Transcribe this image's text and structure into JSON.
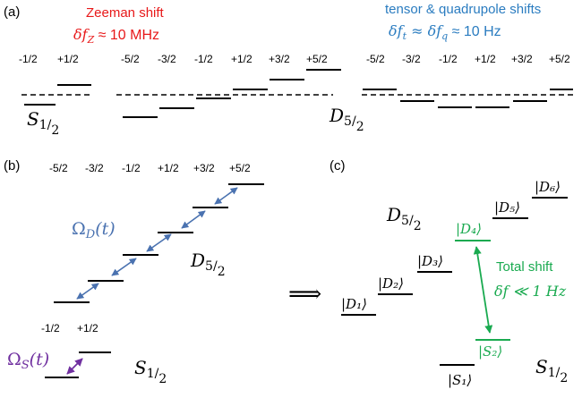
{
  "colors": {
    "black": "#000000",
    "red": "#e8191a",
    "blue": "#2a7cc0",
    "steel": "#4a72b0",
    "purple": "#7030a0",
    "green": "#1aaa50"
  },
  "panel_a": {
    "label": "(a)",
    "zeeman_title": "Zeeman shift",
    "zeeman_formula": "δf",
    "zeeman_sub": "Z",
    "zeeman_value": " ≈ 10 MHz",
    "tensor_title": "tensor & quadrupole shifts",
    "tensor_f1": "δf",
    "tensor_s1": "t",
    "tensor_mid": " ≈ δf",
    "tensor_s2": "q",
    "tensor_value": " ≈ 10 Hz",
    "s_levels": [
      "-1/2",
      "+1/2"
    ],
    "d_levels": [
      "-5/2",
      "-3/2",
      "-1/2",
      "+1/2",
      "+3/2",
      "+5/2"
    ],
    "state_s": "S",
    "state_d": "D",
    "s_sub": "1",
    "s_frac": "/",
    "s_den": "2",
    "d_sub": "5",
    "d_frac": "/",
    "d_den": "2"
  },
  "panel_b": {
    "label": "(b)",
    "d_levels": [
      "-5/2",
      "-3/2",
      "-1/2",
      "+1/2",
      "+3/2",
      "+5/2"
    ],
    "s_levels": [
      "-1/2",
      "+1/2"
    ],
    "omega_d": "Ω",
    "omega_d_sub": "D",
    "omega_d_arg": "(t)",
    "omega_s": "Ω",
    "omega_s_sub": "S",
    "omega_s_arg": "(t)",
    "state_d": "D",
    "state_s": "S",
    "d_sub": "5",
    "s_sub": "1",
    "frac": "/",
    "den": "2",
    "implies": "⟹"
  },
  "panel_c": {
    "label": "(c)",
    "kets": [
      "|D₁⟩",
      "|D₂⟩",
      "|D₃⟩",
      "|D₄⟩",
      "|D₅⟩",
      "|D₆⟩",
      "|S₁⟩",
      "|S₂⟩"
    ],
    "total_shift": "Total shift",
    "shift_formula": "δf ≪ 1 Hz",
    "state_d": "D",
    "state_s": "S",
    "d_sub": "5",
    "s_sub": "1",
    "frac": "/",
    "den": "2"
  }
}
